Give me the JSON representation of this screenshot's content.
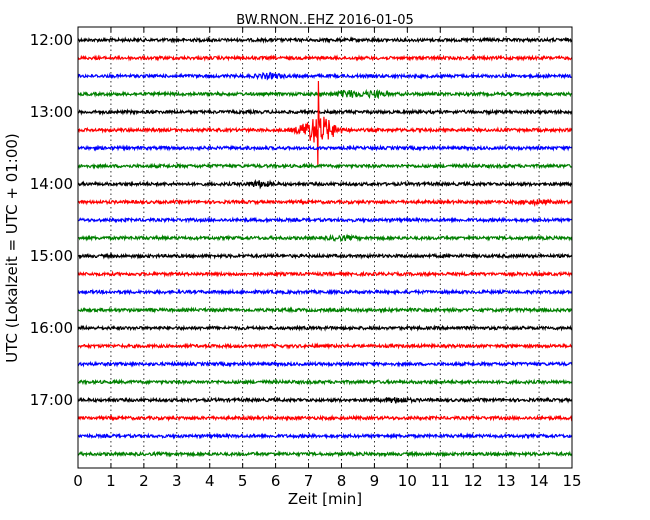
{
  "chart_data": {
    "type": "line",
    "title": "BW.RNON..EHZ 2016-01-05",
    "xlabel": "Zeit  [min]",
    "ylabel": "UTC (Lokalzeit = UTC + 01:00)",
    "xlim": [
      0,
      15
    ],
    "x_ticks": [
      "0",
      "1",
      "2",
      "3",
      "4",
      "5",
      "6",
      "7",
      "8",
      "9",
      "10",
      "11",
      "12",
      "13",
      "14",
      "15"
    ],
    "y_ticks": [
      "12:00",
      "13:00",
      "14:00",
      "15:00",
      "16:00",
      "17:00"
    ],
    "grid": true,
    "trace_colors": [
      "#000000",
      "#ff0000",
      "#0000ff",
      "#008000"
    ],
    "traces": [
      {
        "start": "12:00",
        "color": "#000000"
      },
      {
        "start": "12:15",
        "color": "#ff0000"
      },
      {
        "start": "12:30",
        "color": "#0000ff",
        "events": [
          {
            "x": 5.8,
            "amplitude": 0.25
          }
        ]
      },
      {
        "start": "12:45",
        "color": "#008000",
        "events": [
          {
            "x": 8.2,
            "amplitude": 0.35
          },
          {
            "x": 9.0,
            "amplitude": 0.3
          }
        ]
      },
      {
        "start": "13:00",
        "color": "#000000"
      },
      {
        "start": "13:15",
        "color": "#ff0000",
        "events": [
          {
            "x": 7.3,
            "amplitude": 3.3
          }
        ]
      },
      {
        "start": "13:30",
        "color": "#0000ff"
      },
      {
        "start": "13:45",
        "color": "#008000"
      },
      {
        "start": "14:00",
        "color": "#000000",
        "events": [
          {
            "x": 5.5,
            "amplitude": 0.3
          }
        ]
      },
      {
        "start": "14:15",
        "color": "#ff0000",
        "events": [
          {
            "x": 13.9,
            "amplitude": 0.2
          }
        ]
      },
      {
        "start": "14:30",
        "color": "#0000ff"
      },
      {
        "start": "14:45",
        "color": "#008000",
        "events": [
          {
            "x": 8.0,
            "amplitude": 0.2
          }
        ]
      },
      {
        "start": "15:00",
        "color": "#000000"
      },
      {
        "start": "15:15",
        "color": "#ff0000"
      },
      {
        "start": "15:30",
        "color": "#0000ff"
      },
      {
        "start": "15:45",
        "color": "#008000"
      },
      {
        "start": "16:00",
        "color": "#000000"
      },
      {
        "start": "16:15",
        "color": "#ff0000"
      },
      {
        "start": "16:30",
        "color": "#0000ff"
      },
      {
        "start": "16:45",
        "color": "#008000"
      },
      {
        "start": "17:00",
        "color": "#000000",
        "events": [
          {
            "x": 9.7,
            "amplitude": 0.25
          }
        ]
      },
      {
        "start": "17:15",
        "color": "#ff0000"
      },
      {
        "start": "17:30",
        "color": "#0000ff"
      },
      {
        "start": "17:45",
        "color": "#008000"
      }
    ]
  }
}
